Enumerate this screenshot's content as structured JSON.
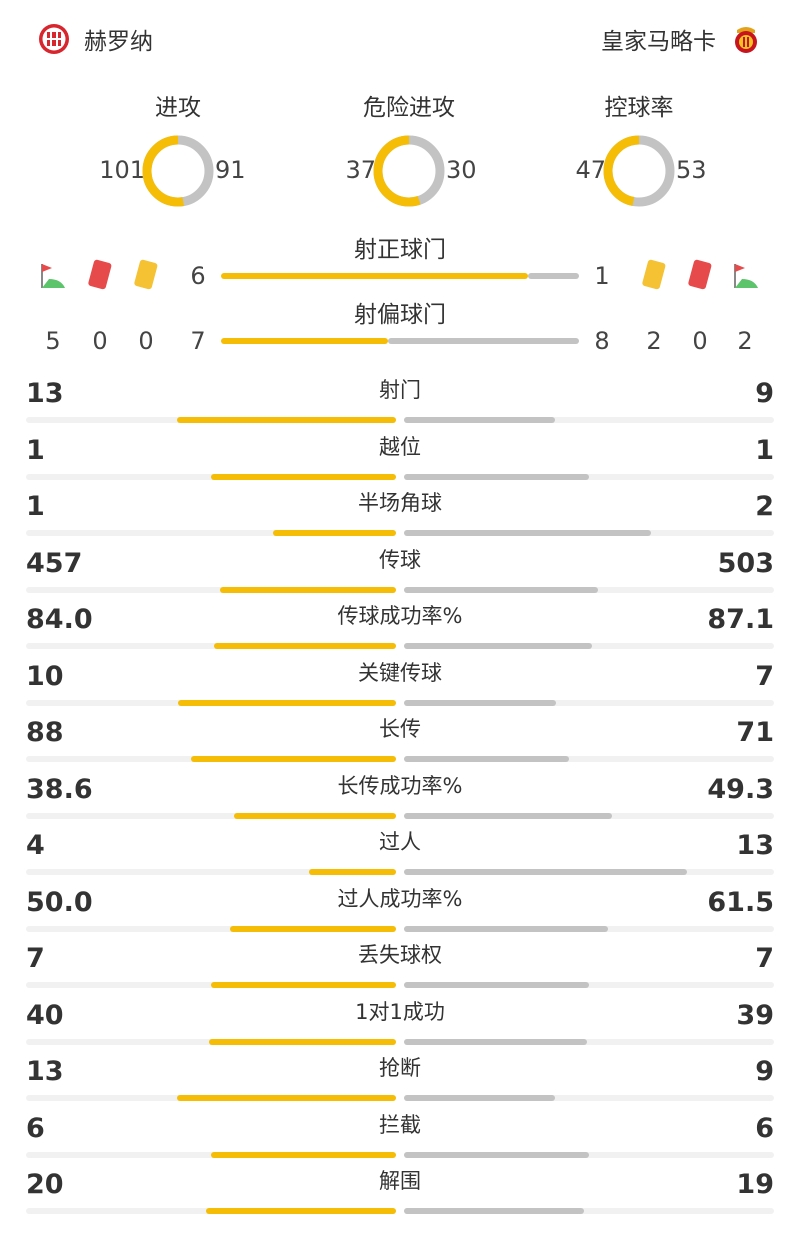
{
  "colors": {
    "home": "#f5bd06",
    "away": "#c3c3c3",
    "track": "#f1f1f1",
    "red": "#e74a4a",
    "yellow": "#f4c233",
    "green": "#5cc46a"
  },
  "header": {
    "home_team": "赫罗纳",
    "away_team": "皇家马略卡",
    "home_badge_icon": "girona-crest-icon",
    "away_badge_icon": "mallorca-crest-icon"
  },
  "donuts": [
    {
      "title": "进攻",
      "home": 101,
      "away": 91
    },
    {
      "title": "危险进攻",
      "home": 37,
      "away": 30
    },
    {
      "title": "控球率",
      "home": 47,
      "away": 53
    }
  ],
  "shots_on_target": {
    "title": "射正球门",
    "home": 6,
    "away": 1
  },
  "shots_off_target": {
    "title": "射偏球门",
    "home": 7,
    "away": 8
  },
  "cards": {
    "home": {
      "corners": 5,
      "red": 0,
      "yellow": 0
    },
    "away": {
      "yellow": 2,
      "red": 0,
      "corners": 2
    }
  },
  "stats": [
    {
      "label": "射门",
      "home": "13",
      "away": "9",
      "hv": 13,
      "av": 9
    },
    {
      "label": "越位",
      "home": "1",
      "away": "1",
      "hv": 1,
      "av": 1
    },
    {
      "label": "半场角球",
      "home": "1",
      "away": "2",
      "hv": 1,
      "av": 2
    },
    {
      "label": "传球",
      "home": "457",
      "away": "503",
      "hv": 457,
      "av": 503
    },
    {
      "label": "传球成功率%",
      "home": "84.0",
      "away": "87.1",
      "hv": 84.0,
      "av": 87.1
    },
    {
      "label": "关键传球",
      "home": "10",
      "away": "7",
      "hv": 10,
      "av": 7
    },
    {
      "label": "长传",
      "home": "88",
      "away": "71",
      "hv": 88,
      "av": 71
    },
    {
      "label": "长传成功率%",
      "home": "38.6",
      "away": "49.3",
      "hv": 38.6,
      "av": 49.3
    },
    {
      "label": "过人",
      "home": "4",
      "away": "13",
      "hv": 4,
      "av": 13
    },
    {
      "label": "过人成功率%",
      "home": "50.0",
      "away": "61.5",
      "hv": 50.0,
      "av": 61.5
    },
    {
      "label": "丢失球权",
      "home": "7",
      "away": "7",
      "hv": 7,
      "av": 7
    },
    {
      "label": "1对1成功",
      "home": "40",
      "away": "39",
      "hv": 40,
      "av": 39
    },
    {
      "label": "抢断",
      "home": "13",
      "away": "9",
      "hv": 13,
      "av": 9
    },
    {
      "label": "拦截",
      "home": "6",
      "away": "6",
      "hv": 6,
      "av": 6
    },
    {
      "label": "解围",
      "home": "20",
      "away": "19",
      "hv": 20,
      "av": 19
    }
  ]
}
